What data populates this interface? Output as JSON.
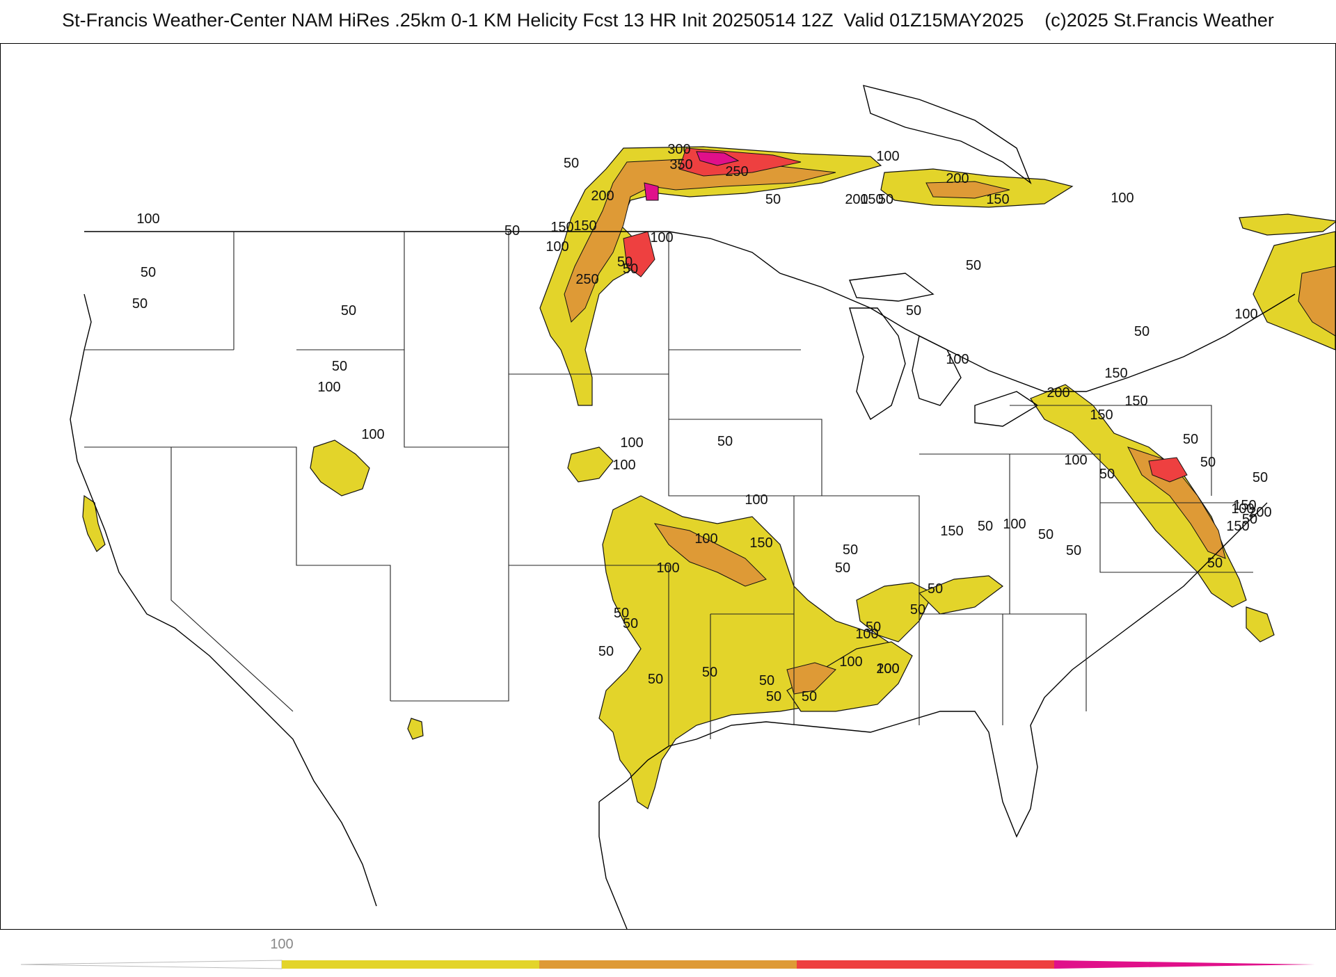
{
  "header": {
    "title": "St-Francis Weather-Center NAM HiRes .25km 0-1 KM Helicity Fcst 13 HR Init 20250514 12Z  Valid 01Z15MAY2025    (c)2025 St.Francis Weather"
  },
  "colors": {
    "level_50_100": "#e3d42a",
    "level_100_200": "#de9a36",
    "level_200_300": "#ee4040",
    "level_300_plus": "#e0108a",
    "coastline": "#000000",
    "state_lines": "#222222",
    "county_lines": "#b8b8b8"
  },
  "legend": {
    "ticks": [
      {
        "label": "100"
      }
    ],
    "bins": [
      {
        "range": "50-100",
        "color_key": "level_50_100"
      },
      {
        "range": "100-200",
        "color_key": "level_100_200"
      },
      {
        "range": "200-300",
        "color_key": "level_200_300"
      },
      {
        "range": "300+",
        "color_key": "level_300_plus"
      }
    ]
  },
  "contour_labels": [
    "300",
    "350",
    "250",
    "200",
    "150",
    "100",
    "50",
    "100",
    "150",
    "200",
    "50",
    "50",
    "200",
    "150",
    "100",
    "150",
    "250",
    "50",
    "100",
    "100",
    "50",
    "50",
    "50",
    "50",
    "50",
    "50",
    "100",
    "100",
    "50",
    "50",
    "100",
    "50",
    "150",
    "200",
    "100",
    "150",
    "150",
    "50",
    "100",
    "50",
    "100",
    "50",
    "100",
    "100",
    "150",
    "100",
    "50",
    "150",
    "100",
    "50",
    "50",
    "50",
    "150",
    "100",
    "200",
    "50",
    "150",
    "50",
    "50",
    "50",
    "100",
    "50",
    "50",
    "50",
    "50",
    "50",
    "50",
    "50",
    "50",
    "50",
    "50",
    "100",
    "50",
    "50",
    "100",
    "200",
    "100"
  ]
}
